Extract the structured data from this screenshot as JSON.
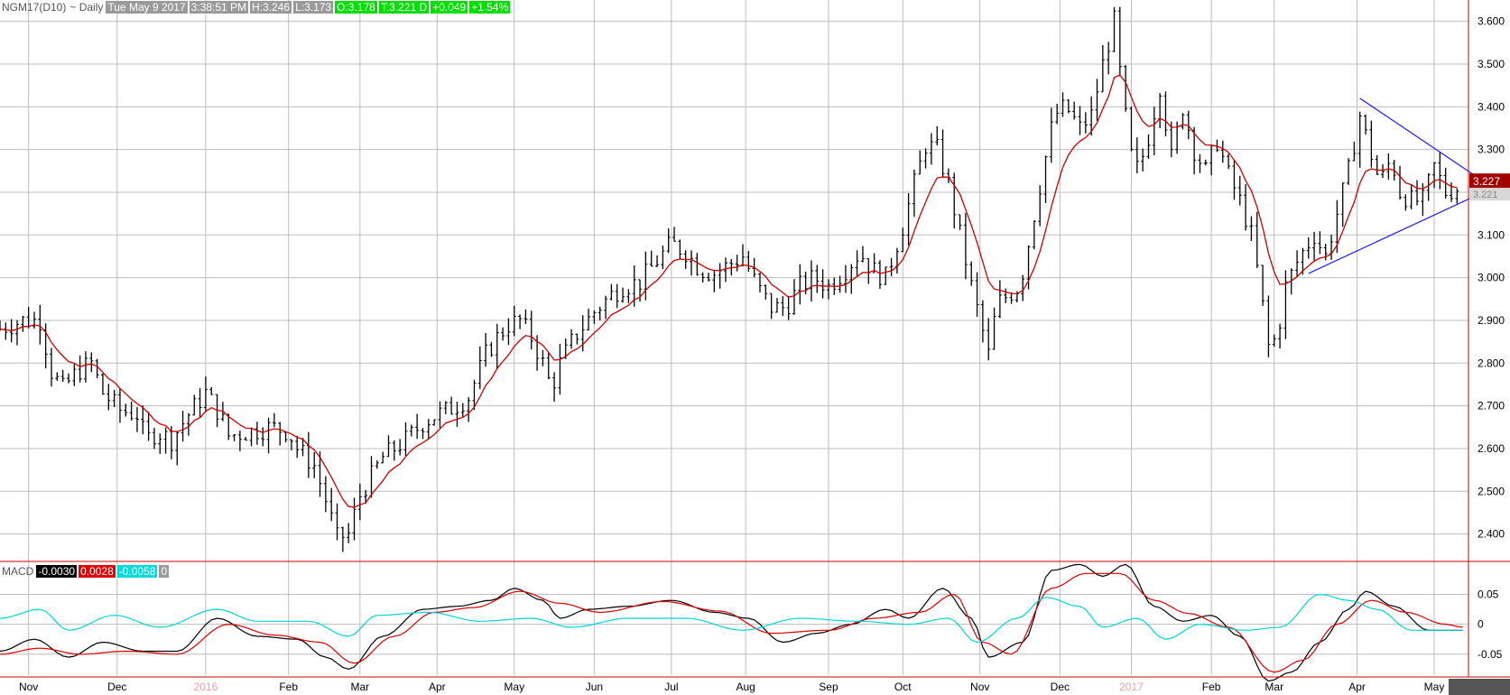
{
  "header": {
    "symbol": "NGM17(D10)",
    "interval": "~ Daily",
    "datetime": "Tue May 9 2017",
    "time": "3:38:51 PM",
    "high": "H:3.246",
    "low": "L:3.173",
    "open": "O:3.178",
    "last": "T:3.221 D",
    "change": "+0.049",
    "change_pct": "+1.54%"
  },
  "macd_header": {
    "label": "MACD",
    "macd_value": "-0.0030",
    "signal_value": "0.0028",
    "hist_value": "-0.0058",
    "extra": "0"
  },
  "chart_data": [
    {
      "type": "ohlc",
      "price_labels": [
        "3.600",
        "3.500",
        "3.400",
        "3.300",
        "3.200",
        "3.100",
        "3.000",
        "2.900",
        "2.800",
        "2.700",
        "2.600",
        "2.500",
        "2.400"
      ],
      "price_ticks": [
        3.6,
        3.5,
        3.4,
        3.3,
        3.2,
        3.1,
        3.0,
        2.9,
        2.8,
        2.7,
        2.6,
        2.5,
        2.4
      ],
      "ylim": [
        2.34,
        3.65
      ],
      "last_price_badge": "3.227",
      "last_price_gray": "3.221",
      "colors": {
        "bars": "#000000",
        "ma": "#cc0000",
        "trendline": "#1a1aff",
        "grid": "#bdbdbd"
      },
      "x_labels": [
        {
          "label": "Nov",
          "x": 10
        },
        {
          "label": "Dec",
          "x": 41
        },
        {
          "label": "2016",
          "x": 72
        },
        {
          "label": "Feb",
          "x": 101
        },
        {
          "label": "Mar",
          "x": 126
        },
        {
          "label": "Apr",
          "x": 153
        },
        {
          "label": "May",
          "x": 180
        },
        {
          "label": "Jun",
          "x": 208
        },
        {
          "label": "Jul",
          "x": 235
        },
        {
          "label": "Aug",
          "x": 261
        },
        {
          "label": "Sep",
          "x": 290
        },
        {
          "label": "Oct",
          "x": 316
        },
        {
          "label": "Nov",
          "x": 343
        },
        {
          "label": "Dec",
          "x": 371
        },
        {
          "label": "2017",
          "x": 396
        },
        {
          "label": "Feb",
          "x": 424
        },
        {
          "label": "Mar",
          "x": 446
        },
        {
          "label": "Apr",
          "x": 475
        },
        {
          "label": "May",
          "x": 502
        }
      ],
      "x_range": [
        0,
        514
      ],
      "anchors": [
        [
          0,
          2.88
        ],
        [
          8,
          2.9
        ],
        [
          14,
          2.9
        ],
        [
          18,
          2.78
        ],
        [
          22,
          2.74
        ],
        [
          27,
          2.78
        ],
        [
          32,
          2.8
        ],
        [
          36,
          2.73
        ],
        [
          42,
          2.69
        ],
        [
          48,
          2.68
        ],
        [
          51,
          2.62
        ],
        [
          55,
          2.64
        ],
        [
          60,
          2.62
        ],
        [
          66,
          2.68
        ],
        [
          72,
          2.73
        ],
        [
          77,
          2.68
        ],
        [
          80,
          2.63
        ],
        [
          88,
          2.64
        ],
        [
          95,
          2.65
        ],
        [
          101,
          2.64
        ],
        [
          104,
          2.6
        ],
        [
          110,
          2.56
        ],
        [
          114,
          2.48
        ],
        [
          118,
          2.39
        ],
        [
          122,
          2.4
        ],
        [
          126,
          2.49
        ],
        [
          134,
          2.58
        ],
        [
          142,
          2.62
        ],
        [
          148,
          2.66
        ],
        [
          153,
          2.68
        ],
        [
          157,
          2.69
        ],
        [
          164,
          2.72
        ],
        [
          170,
          2.82
        ],
        [
          174,
          2.86
        ],
        [
          178,
          2.89
        ],
        [
          182,
          2.9
        ],
        [
          186,
          2.86
        ],
        [
          190,
          2.8
        ],
        [
          193,
          2.74
        ],
        [
          196,
          2.8
        ],
        [
          201,
          2.86
        ],
        [
          208,
          2.92
        ],
        [
          214,
          2.96
        ],
        [
          218,
          2.98
        ],
        [
          224,
          2.99
        ],
        [
          230,
          3.04
        ],
        [
          235,
          3.08
        ],
        [
          240,
          3.06
        ],
        [
          245,
          3.02
        ],
        [
          250,
          3.01
        ],
        [
          255,
          3.03
        ],
        [
          260,
          3.05
        ],
        [
          265,
          2.98
        ],
        [
          270,
          2.93
        ],
        [
          275,
          2.93
        ],
        [
          280,
          2.98
        ],
        [
          285,
          3.0
        ],
        [
          290,
          2.98
        ],
        [
          296,
          3.02
        ],
        [
          301,
          3.06
        ],
        [
          305,
          3.02
        ],
        [
          310,
          3.0
        ],
        [
          316,
          3.12
        ],
        [
          320,
          3.22
        ],
        [
          324,
          3.31
        ],
        [
          328,
          3.3
        ],
        [
          332,
          3.22
        ],
        [
          336,
          3.1
        ],
        [
          340,
          2.98
        ],
        [
          343,
          2.9
        ],
        [
          346,
          2.82
        ],
        [
          349,
          2.94
        ],
        [
          353,
          2.96
        ],
        [
          357,
          2.98
        ],
        [
          360,
          3.08
        ],
        [
          365,
          3.25
        ],
        [
          369,
          3.38
        ],
        [
          373,
          3.4
        ],
        [
          378,
          3.35
        ],
        [
          382,
          3.38
        ],
        [
          386,
          3.5
        ],
        [
          390,
          3.6
        ],
        [
          393,
          3.42
        ],
        [
          397,
          3.24
        ],
        [
          401,
          3.3
        ],
        [
          406,
          3.45
        ],
        [
          410,
          3.28
        ],
        [
          414,
          3.4
        ],
        [
          418,
          3.3
        ],
        [
          422,
          3.25
        ],
        [
          426,
          3.32
        ],
        [
          430,
          3.24
        ],
        [
          434,
          3.18
        ],
        [
          438,
          3.1
        ],
        [
          441,
          2.98
        ],
        [
          444,
          2.84
        ],
        [
          447,
          2.86
        ],
        [
          450,
          2.98
        ],
        [
          455,
          3.05
        ],
        [
          460,
          3.1
        ],
        [
          464,
          3.05
        ],
        [
          468,
          3.15
        ],
        [
          472,
          3.25
        ],
        [
          476,
          3.38
        ],
        [
          479,
          3.31
        ],
        [
          483,
          3.22
        ],
        [
          487,
          3.28
        ],
        [
          490,
          3.2
        ],
        [
          494,
          3.18
        ],
        [
          498,
          3.18
        ],
        [
          502,
          3.26
        ],
        [
          506,
          3.2
        ],
        [
          510,
          3.21
        ]
      ],
      "trendlines": [
        [
          [
            476,
            3.42
          ],
          [
            516,
            3.24
          ]
        ],
        [
          [
            458,
            3.01
          ],
          [
            516,
            3.19
          ]
        ]
      ]
    },
    {
      "type": "line",
      "title": "MACD",
      "y_labels": [
        "0.05",
        "0",
        "-0.05"
      ],
      "y_ticks": [
        0.05,
        0,
        -0.05
      ],
      "ylim": [
        -0.085,
        0.105
      ],
      "series": [
        {
          "name": "MACD",
          "color": "#000000",
          "points": [
            [
              0,
              -0.045
            ],
            [
              12,
              -0.025
            ],
            [
              24,
              -0.055
            ],
            [
              36,
              -0.03
            ],
            [
              50,
              -0.045
            ],
            [
              62,
              -0.045
            ],
            [
              76,
              0.01
            ],
            [
              90,
              -0.02
            ],
            [
              104,
              -0.025
            ],
            [
              114,
              -0.055
            ],
            [
              122,
              -0.075
            ],
            [
              134,
              -0.02
            ],
            [
              148,
              0.025
            ],
            [
              160,
              0.03
            ],
            [
              172,
              0.04
            ],
            [
              180,
              0.06
            ],
            [
              190,
              0.04
            ],
            [
              196,
              0.01
            ],
            [
              206,
              0.025
            ],
            [
              220,
              0.03
            ],
            [
              235,
              0.04
            ],
            [
              250,
              0.02
            ],
            [
              262,
              0.01
            ],
            [
              274,
              -0.03
            ],
            [
              286,
              -0.015
            ],
            [
              298,
              0.0
            ],
            [
              310,
              0.025
            ],
            [
              318,
              0.01
            ],
            [
              330,
              0.06
            ],
            [
              340,
              0.01
            ],
            [
              346,
              -0.055
            ],
            [
              358,
              -0.03
            ],
            [
              368,
              0.09
            ],
            [
              378,
              0.1
            ],
            [
              386,
              0.08
            ],
            [
              394,
              0.1
            ],
            [
              404,
              0.03
            ],
            [
              414,
              0.005
            ],
            [
              424,
              0.015
            ],
            [
              434,
              -0.02
            ],
            [
              444,
              -0.095
            ],
            [
              452,
              -0.08
            ],
            [
              462,
              -0.03
            ],
            [
              472,
              0.025
            ],
            [
              478,
              0.055
            ],
            [
              488,
              0.03
            ],
            [
              500,
              -0.01
            ],
            [
              512,
              -0.01
            ]
          ]
        },
        {
          "name": "Signal",
          "color": "#dd0000",
          "points": [
            [
              0,
              -0.05
            ],
            [
              14,
              -0.04
            ],
            [
              28,
              -0.05
            ],
            [
              44,
              -0.045
            ],
            [
              62,
              -0.05
            ],
            [
              80,
              0.0
            ],
            [
              96,
              -0.018
            ],
            [
              112,
              -0.03
            ],
            [
              124,
              -0.065
            ],
            [
              138,
              -0.02
            ],
            [
              152,
              0.02
            ],
            [
              166,
              0.028
            ],
            [
              182,
              0.055
            ],
            [
              196,
              0.035
            ],
            [
              210,
              0.02
            ],
            [
              232,
              0.038
            ],
            [
              252,
              0.022
            ],
            [
              270,
              -0.015
            ],
            [
              290,
              -0.01
            ],
            [
              306,
              0.01
            ],
            [
              322,
              0.02
            ],
            [
              334,
              0.05
            ],
            [
              344,
              -0.03
            ],
            [
              354,
              -0.05
            ],
            [
              368,
              0.06
            ],
            [
              380,
              0.085
            ],
            [
              392,
              0.085
            ],
            [
              404,
              0.04
            ],
            [
              416,
              0.018
            ],
            [
              430,
              -0.005
            ],
            [
              446,
              -0.08
            ],
            [
              456,
              -0.06
            ],
            [
              468,
              0.0
            ],
            [
              480,
              0.04
            ],
            [
              492,
              0.02
            ],
            [
              506,
              0.0
            ],
            [
              512,
              -0.005
            ]
          ]
        },
        {
          "name": "Histogram",
          "color": "#00d8d8",
          "points": [
            [
              0,
              0.01
            ],
            [
              14,
              0.025
            ],
            [
              24,
              -0.01
            ],
            [
              40,
              0.015
            ],
            [
              56,
              -0.005
            ],
            [
              76,
              0.025
            ],
            [
              90,
              0.005
            ],
            [
              108,
              0.005
            ],
            [
              122,
              -0.02
            ],
            [
              132,
              0.015
            ],
            [
              150,
              0.02
            ],
            [
              168,
              0.005
            ],
            [
              186,
              0.01
            ],
            [
              200,
              -0.005
            ],
            [
              220,
              0.01
            ],
            [
              240,
              0.01
            ],
            [
              260,
              -0.01
            ],
            [
              280,
              0.01
            ],
            [
              300,
              0.005
            ],
            [
              318,
              0.0
            ],
            [
              332,
              0.01
            ],
            [
              342,
              -0.03
            ],
            [
              356,
              0.01
            ],
            [
              366,
              0.045
            ],
            [
              378,
              0.03
            ],
            [
              386,
              -0.005
            ],
            [
              398,
              0.01
            ],
            [
              408,
              -0.025
            ],
            [
              420,
              0.0
            ],
            [
              436,
              -0.01
            ],
            [
              448,
              -0.005
            ],
            [
              462,
              0.05
            ],
            [
              472,
              0.04
            ],
            [
              482,
              0.025
            ],
            [
              494,
              -0.01
            ],
            [
              512,
              -0.01
            ]
          ]
        }
      ]
    }
  ]
}
